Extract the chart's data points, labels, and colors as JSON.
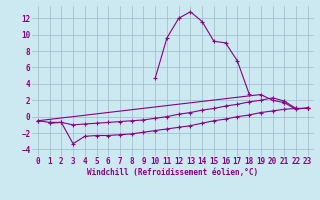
{
  "xlabel": "Windchill (Refroidissement éolien,°C)",
  "bg_color": "#cce8f0",
  "grid_color": "#99bbcc",
  "line_color": "#880088",
  "xlim": [
    -0.5,
    23.5
  ],
  "ylim": [
    -4.8,
    13.5
  ],
  "xticks": [
    0,
    1,
    2,
    3,
    4,
    5,
    6,
    7,
    8,
    9,
    10,
    11,
    12,
    13,
    14,
    15,
    16,
    17,
    18,
    19,
    20,
    21,
    22,
    23
  ],
  "yticks": [
    -4,
    -2,
    0,
    2,
    4,
    6,
    8,
    10,
    12
  ],
  "series": [
    [
      null,
      -0.8,
      -0.7,
      -3.3,
      -2.4,
      -2.3,
      -2.3,
      -2.2,
      -2.1,
      -1.9,
      -1.7,
      -1.5,
      -1.3,
      -1.1,
      -0.8,
      -0.5,
      -0.3,
      0.0,
      0.2,
      0.5,
      0.7,
      0.9,
      1.0,
      1.0
    ],
    [
      null,
      null,
      null,
      null,
      null,
      null,
      null,
      null,
      null,
      null,
      4.7,
      9.6,
      12.0,
      12.8,
      11.6,
      9.2,
      9.0,
      6.8,
      2.8,
      null,
      null,
      null,
      null,
      null
    ],
    [
      -0.5,
      -0.7,
      -0.7,
      -1.0,
      -0.9,
      -0.8,
      -0.7,
      -0.6,
      -0.5,
      -0.4,
      -0.2,
      0.0,
      0.3,
      0.5,
      0.8,
      1.0,
      1.3,
      1.5,
      1.8,
      2.0,
      2.3,
      1.9,
      1.0,
      1.0
    ],
    [
      -0.5,
      null,
      null,
      null,
      null,
      null,
      null,
      null,
      null,
      null,
      null,
      null,
      null,
      null,
      null,
      null,
      null,
      null,
      null,
      2.7,
      2.0,
      1.7,
      0.9,
      1.1
    ]
  ]
}
